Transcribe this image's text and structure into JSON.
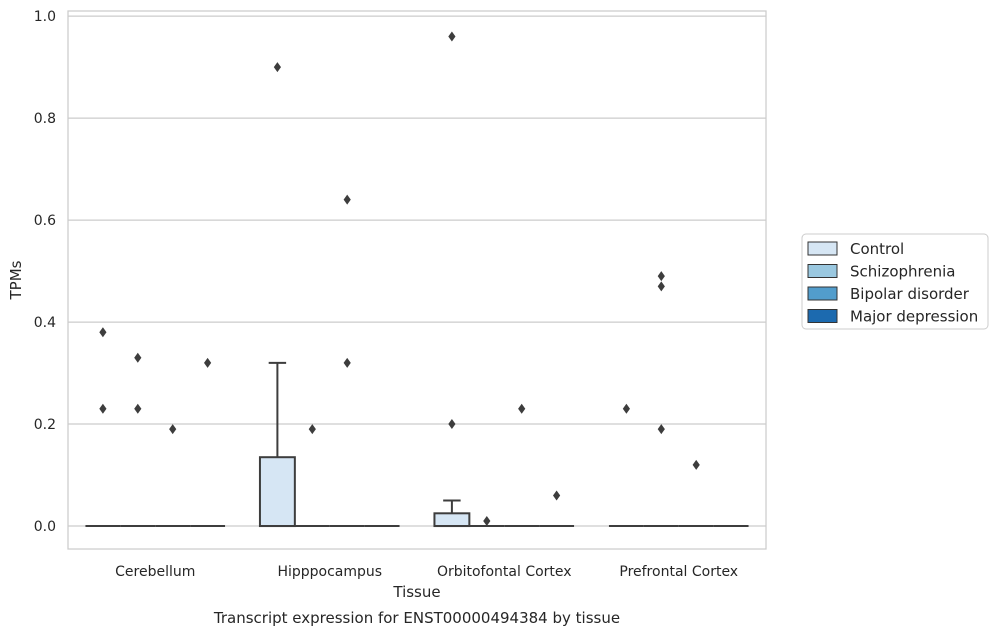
{
  "chart_data": {
    "type": "box",
    "title": "Transcript expression for ENST00000494384 by tissue",
    "xlabel": "Tissue",
    "ylabel": "TPMs",
    "ylim": [
      -0.045,
      1.01
    ],
    "yticks": [
      0.0,
      0.2,
      0.4,
      0.6,
      0.8,
      1.0
    ],
    "ytick_labels": [
      "0.0",
      "0.2",
      "0.4",
      "0.6",
      "0.8",
      "1.0"
    ],
    "grid": true,
    "legend_position": "right",
    "categories": [
      "Cerebellum",
      "Hipppocampus",
      "Orbitofontal Cortex",
      "Prefrontal Cortex"
    ],
    "series": [
      {
        "name": "Control",
        "color": "#d6e6f4",
        "boxes": [
          {
            "q1": 0,
            "median": 0,
            "q3": 0,
            "whisker_low": 0,
            "whisker_high": 0,
            "outliers": [
              0.23,
              0.38
            ]
          },
          {
            "q1": 0,
            "median": 0,
            "q3": 0.135,
            "whisker_low": 0,
            "whisker_high": 0.32,
            "outliers": [
              0.9
            ]
          },
          {
            "q1": 0,
            "median": 0,
            "q3": 0.025,
            "whisker_low": 0,
            "whisker_high": 0.05,
            "outliers": [
              0.2,
              0.96
            ]
          },
          {
            "q1": 0,
            "median": 0,
            "q3": 0,
            "whisker_low": 0,
            "whisker_high": 0,
            "outliers": [
              0.23
            ]
          }
        ]
      },
      {
        "name": "Schizophrenia",
        "color": "#9ac8e0",
        "boxes": [
          {
            "q1": 0,
            "median": 0,
            "q3": 0,
            "whisker_low": 0,
            "whisker_high": 0,
            "outliers": [
              0.23,
              0.33
            ]
          },
          {
            "q1": 0,
            "median": 0,
            "q3": 0,
            "whisker_low": 0,
            "whisker_high": 0,
            "outliers": [
              0.19
            ]
          },
          {
            "q1": 0,
            "median": 0,
            "q3": 0,
            "whisker_low": 0,
            "whisker_high": 0,
            "outliers": [
              0.01
            ]
          },
          {
            "q1": 0,
            "median": 0,
            "q3": 0,
            "whisker_low": 0,
            "whisker_high": 0,
            "outliers": [
              0.19,
              0.47,
              0.49
            ]
          }
        ]
      },
      {
        "name": "Bipolar disorder",
        "color": "#529dcc",
        "boxes": [
          {
            "q1": 0,
            "median": 0,
            "q3": 0,
            "whisker_low": 0,
            "whisker_high": 0,
            "outliers": [
              0.19
            ]
          },
          {
            "q1": 0,
            "median": 0,
            "q3": 0,
            "whisker_low": 0,
            "whisker_high": 0,
            "outliers": [
              0.32,
              0.64
            ]
          },
          {
            "q1": 0,
            "median": 0,
            "q3": 0,
            "whisker_low": 0,
            "whisker_high": 0,
            "outliers": [
              0.23
            ]
          },
          {
            "q1": 0,
            "median": 0,
            "q3": 0,
            "whisker_low": 0,
            "whisker_high": 0,
            "outliers": [
              0.12
            ]
          }
        ]
      },
      {
        "name": "Major depression",
        "color": "#1c6aaf",
        "boxes": [
          {
            "q1": 0,
            "median": 0,
            "q3": 0,
            "whisker_low": 0,
            "whisker_high": 0,
            "outliers": [
              0.32
            ]
          },
          {
            "q1": 0,
            "median": 0,
            "q3": 0,
            "whisker_low": 0,
            "whisker_high": 0,
            "outliers": []
          },
          {
            "q1": 0,
            "median": 0,
            "q3": 0,
            "whisker_low": 0,
            "whisker_high": 0,
            "outliers": [
              0.06
            ]
          },
          {
            "q1": 0,
            "median": 0,
            "q3": 0,
            "whisker_low": 0,
            "whisker_high": 0,
            "outliers": []
          }
        ]
      }
    ]
  }
}
